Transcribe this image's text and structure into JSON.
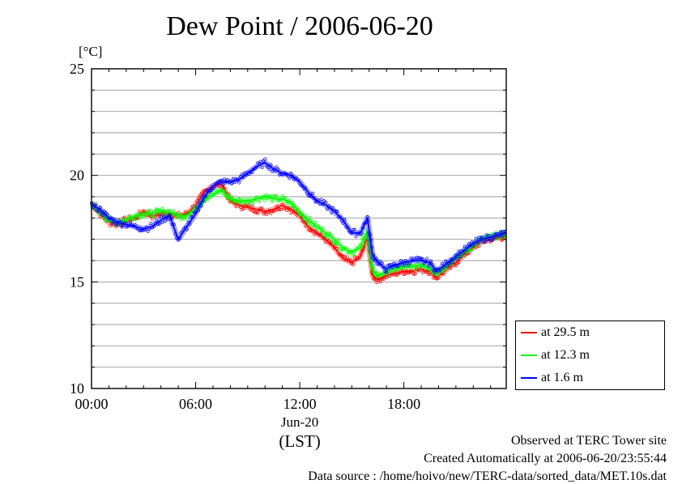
{
  "chart_data": {
    "type": "line",
    "title": "Dew Point / 2006-06-20",
    "ylabel": "[°C]",
    "xlabel": "(LST)",
    "x_date_label": "Jun-20",
    "xlim": [
      0,
      23.9
    ],
    "ylim": [
      10,
      25
    ],
    "y_ticks": [
      10,
      15,
      20,
      25
    ],
    "y_tick_labels": [
      "10",
      "15",
      "20",
      "25"
    ],
    "x_ticks": [
      0,
      6,
      12,
      18
    ],
    "x_tick_labels": [
      "00:00",
      "06:00",
      "12:00",
      "18:00"
    ],
    "grid": true,
    "legend_position": "bottom-right outside",
    "x": [
      0,
      0.5,
      1,
      1.5,
      2,
      2.5,
      3,
      3.5,
      4,
      4.5,
      5,
      5.5,
      6,
      6.5,
      7,
      7.5,
      8,
      8.5,
      9,
      9.5,
      10,
      10.5,
      11,
      11.5,
      12,
      12.5,
      13,
      13.5,
      14,
      14.5,
      15,
      15.5,
      15.9,
      16.2,
      16.5,
      17,
      17.5,
      18,
      18.5,
      19,
      19.5,
      19.9,
      20.5,
      21,
      21.5,
      22,
      22.5,
      23,
      23.5,
      23.9
    ],
    "series": [
      {
        "name": "at 29.5 m",
        "color": "#ff0000",
        "values": [
          18.7,
          18.2,
          17.8,
          17.7,
          17.9,
          18.0,
          18.3,
          18.1,
          18.2,
          18.2,
          18.1,
          18.2,
          18.6,
          19.2,
          19.5,
          19.6,
          18.8,
          18.6,
          18.5,
          18.4,
          18.3,
          18.4,
          18.6,
          18.4,
          18.1,
          17.6,
          17.3,
          17.0,
          16.6,
          16.1,
          15.9,
          16.2,
          17.1,
          15.3,
          15.1,
          15.3,
          15.4,
          15.5,
          15.5,
          15.6,
          15.5,
          15.2,
          15.6,
          15.9,
          16.3,
          16.6,
          16.9,
          17.0,
          17.1,
          17.1
        ]
      },
      {
        "name": "at 12.3 m",
        "color": "#00ff00",
        "values": [
          18.6,
          18.3,
          17.9,
          17.8,
          17.9,
          18.1,
          18.2,
          18.2,
          18.3,
          18.3,
          18.1,
          18.1,
          18.4,
          18.9,
          19.1,
          19.3,
          18.9,
          18.8,
          18.8,
          18.9,
          19.0,
          18.9,
          18.9,
          18.7,
          18.3,
          17.9,
          17.6,
          17.3,
          17.0,
          16.6,
          16.4,
          16.6,
          17.4,
          15.6,
          15.3,
          15.5,
          15.6,
          15.7,
          15.7,
          15.8,
          15.7,
          15.4,
          15.8,
          16.1,
          16.4,
          16.7,
          17.0,
          17.1,
          17.2,
          17.2
        ]
      },
      {
        "name": "at 1.6 m",
        "color": "#0000ff",
        "values": [
          18.6,
          18.4,
          18.0,
          17.8,
          17.7,
          17.6,
          17.5,
          17.6,
          17.9,
          18.1,
          17.0,
          17.6,
          18.2,
          19.0,
          19.5,
          19.7,
          19.7,
          19.8,
          20.1,
          20.4,
          20.6,
          20.3,
          20.1,
          20.0,
          19.7,
          19.2,
          18.8,
          18.6,
          18.3,
          17.9,
          17.3,
          17.3,
          18.0,
          16.3,
          15.9,
          15.6,
          15.8,
          15.9,
          16.0,
          16.0,
          15.9,
          15.5,
          15.9,
          16.2,
          16.5,
          16.8,
          17.0,
          17.1,
          17.2,
          17.3
        ]
      }
    ]
  },
  "legend": [
    {
      "label": "at 29.5 m",
      "color": "#ff0000"
    },
    {
      "label": "at 12.3 m",
      "color": "#00ff00"
    },
    {
      "label": "at 1.6 m",
      "color": "#0000ff"
    }
  ],
  "footer": {
    "observed": "Observed at TERC Tower site",
    "created": "Created Automatically at 2006-06-20/23:55:44",
    "source": "Data source : /home/hoivo/new/TERC-data/sorted_data/MET.10s.dat"
  }
}
